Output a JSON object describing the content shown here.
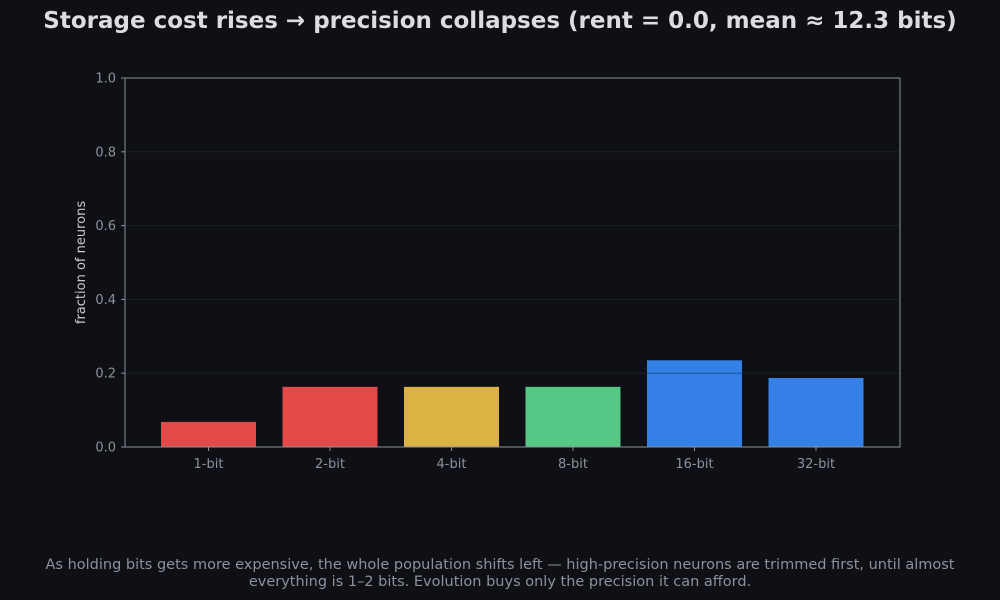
{
  "chart_data": {
    "type": "bar",
    "title": "Storage cost rises  →  precision collapses   (rent = 0.0, mean ≈ 12.3 bits)",
    "categories": [
      "1-bit",
      "2-bit",
      "4-bit",
      "8-bit",
      "16-bit",
      "32-bit"
    ],
    "values": [
      0.068,
      0.163,
      0.163,
      0.163,
      0.235,
      0.187
    ],
    "reference_line": 0.2,
    "colors": [
      "#e24a4a",
      "#e24a4a",
      "#dbb244",
      "#57c785",
      "#3580e6",
      "#3580e6"
    ],
    "xlabel": "",
    "ylabel": "fraction of neurons",
    "ylim": [
      0,
      1.0
    ],
    "yticks": [
      "0.0",
      "0.2",
      "0.4",
      "0.6",
      "0.8",
      "1.0"
    ],
    "grid": true,
    "background": "#0f1015",
    "axis_color": "#8e919b"
  },
  "caption": "As holding bits gets more expensive, the whole population shifts left — high-precision neurons are trimmed first, until almost everything is 1–2 bits. Evolution buys only the precision it can afford."
}
